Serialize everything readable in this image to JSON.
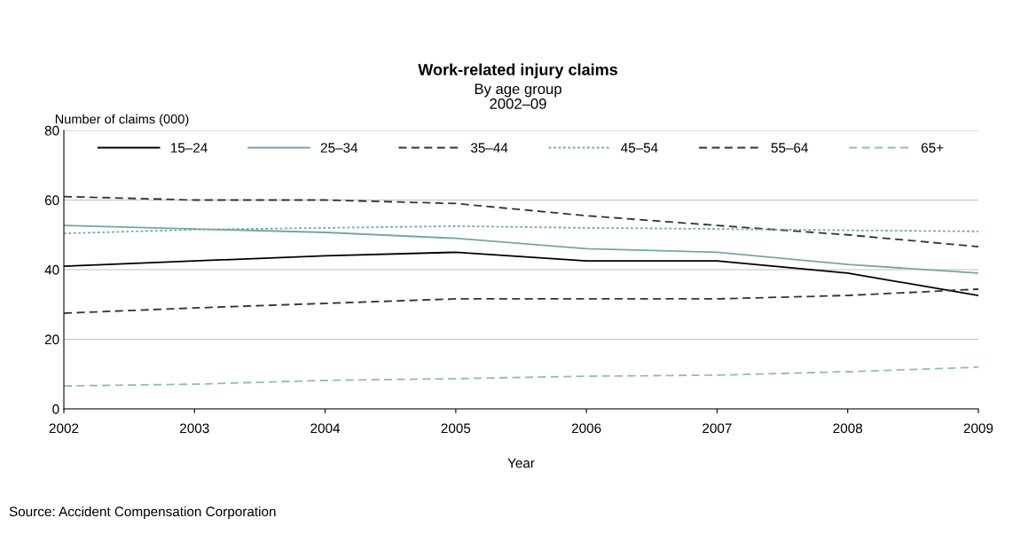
{
  "chart_data": {
    "type": "line",
    "title": "Work-related injury claims",
    "subtitle": "By age group\n2002–09",
    "xlabel": "Year",
    "ylabel": "Number of claims (000)",
    "x": [
      2002,
      2003,
      2004,
      2005,
      2006,
      2007,
      2008,
      2009
    ],
    "series": [
      {
        "name": "15–24",
        "color": "#000000",
        "line_style": "solid",
        "values": [
          41,
          42.5,
          44,
          45,
          42.5,
          42.5,
          39,
          32.6
        ]
      },
      {
        "name": "25–34",
        "color": "#6fa8a8",
        "line_style": "solid",
        "values": [
          52.7,
          51.7,
          50.7,
          49,
          46,
          45,
          41.5,
          39
        ]
      },
      {
        "name": "35–44",
        "color": "#333333",
        "line_style": "dashed",
        "values": [
          61,
          60,
          60,
          59,
          55.5,
          52.7,
          50,
          46.6
        ]
      },
      {
        "name": "45–54",
        "color": "#6fa8a8",
        "line_style": "dotted",
        "values": [
          50.4,
          51.5,
          52,
          52.5,
          52,
          51.7,
          51.3,
          51
        ]
      },
      {
        "name": "55–64",
        "color": "#333333",
        "line_style": "dashed",
        "values": [
          27.5,
          29,
          30.3,
          31.6,
          31.6,
          31.6,
          32.6,
          34.4
        ]
      },
      {
        "name": "65+",
        "color": "#8fbcbc",
        "line_style": "dashed",
        "values": [
          6.6,
          7.1,
          8.2,
          8.7,
          9.4,
          9.7,
          10.7,
          12
        ]
      }
    ],
    "xlim": [
      2002,
      2009
    ],
    "xticks": [
      2002,
      2003,
      2004,
      2005,
      2006,
      2007,
      2008,
      2009
    ],
    "ylim": [
      0,
      80
    ],
    "yticks": [
      0,
      20,
      40,
      60,
      80
    ],
    "grid": "y",
    "legend": "top",
    "marker": "none",
    "annotations": [
      "Source: Accident Compensation Corporation"
    ]
  }
}
